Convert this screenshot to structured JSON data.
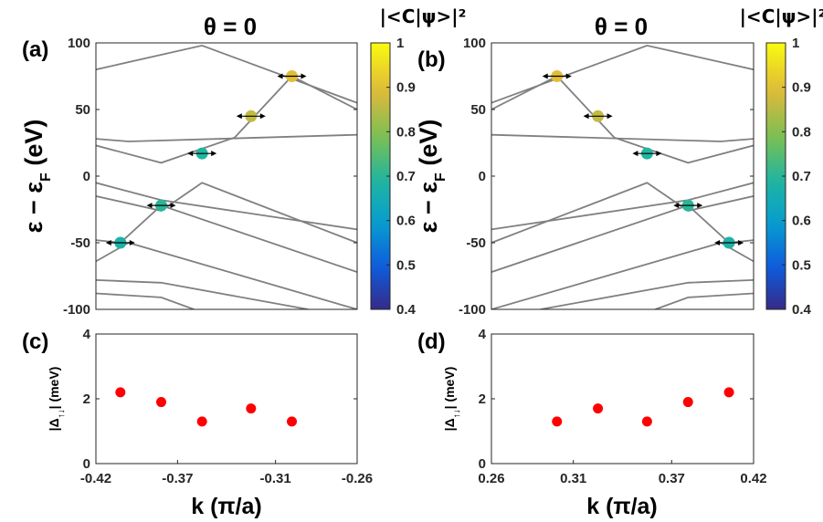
{
  "chart_data": [
    {
      "id": "a",
      "type": "line",
      "panel_label": "(a)",
      "title": "θ = 0",
      "ylabel": "ε − ε_F (eV)",
      "ylabel_main": "ε − ε",
      "ylabel_sub": "F",
      "ylabel_tail": " (eV)",
      "xlim": [
        -0.42,
        -0.26
      ],
      "ylim": [
        -100,
        100
      ],
      "yticks": [
        100,
        50,
        0,
        -50,
        -100
      ],
      "ytick_labels": [
        "100",
        "50",
        "0",
        "-50",
        "-100"
      ],
      "line_color": "#808080",
      "bands": [
        [
          [
            -0.42,
            80
          ],
          [
            -0.355,
            98
          ],
          [
            -0.26,
            55
          ]
        ],
        [
          [
            -0.42,
            28
          ],
          [
            -0.4,
            26
          ],
          [
            -0.26,
            31
          ]
        ],
        [
          [
            -0.42,
            23
          ],
          [
            -0.38,
            10
          ],
          [
            -0.335,
            29
          ],
          [
            -0.3,
            75
          ],
          [
            -0.26,
            50
          ]
        ],
        [
          [
            -0.42,
            -5
          ],
          [
            -0.38,
            -18
          ],
          [
            -0.26,
            -40
          ]
        ],
        [
          [
            -0.42,
            -15
          ],
          [
            -0.38,
            -26
          ],
          [
            -0.355,
            -5
          ],
          [
            -0.26,
            -50
          ]
        ],
        [
          [
            -0.42,
            -48
          ],
          [
            -0.405,
            -50
          ],
          [
            -0.38,
            -22
          ],
          [
            -0.26,
            -72
          ]
        ],
        [
          [
            -0.42,
            -64
          ],
          [
            -0.4,
            -50
          ],
          [
            -0.26,
            -100
          ]
        ],
        [
          [
            -0.42,
            -78
          ],
          [
            -0.38,
            -80
          ],
          [
            -0.29,
            -100
          ]
        ],
        [
          [
            -0.42,
            -88
          ],
          [
            -0.38,
            -91
          ],
          [
            -0.36,
            -100
          ]
        ]
      ],
      "points": [
        {
          "k": -0.405,
          "e": -50,
          "w": 0.68
        },
        {
          "k": -0.38,
          "e": -22,
          "w": 0.7
        },
        {
          "k": -0.355,
          "e": 17,
          "w": 0.69
        },
        {
          "k": -0.325,
          "e": 45,
          "w": 0.86
        },
        {
          "k": -0.3,
          "e": 75,
          "w": 0.9
        }
      ]
    },
    {
      "id": "b",
      "type": "line",
      "panel_label": "(b)",
      "title": "θ = 0",
      "ylabel": "ε − ε_F (eV)",
      "ylabel_main": "ε − ε",
      "ylabel_sub": "F",
      "ylabel_tail": " (eV)",
      "xlim": [
        0.26,
        0.42
      ],
      "ylim": [
        -100,
        100
      ],
      "yticks": [
        100,
        50,
        0,
        -50,
        -100
      ],
      "ytick_labels": [
        "100",
        "50",
        "0",
        "-50",
        "-100"
      ],
      "line_color": "#808080",
      "bands": [
        [
          [
            0.26,
            50
          ],
          [
            0.3,
            75
          ],
          [
            0.335,
            29
          ],
          [
            0.38,
            10
          ],
          [
            0.42,
            23
          ]
        ],
        [
          [
            0.26,
            55
          ],
          [
            0.355,
            98
          ],
          [
            0.42,
            80
          ]
        ],
        [
          [
            0.26,
            31
          ],
          [
            0.4,
            26
          ],
          [
            0.42,
            28
          ]
        ],
        [
          [
            0.26,
            -40
          ],
          [
            0.38,
            -18
          ],
          [
            0.42,
            -5
          ]
        ],
        [
          [
            0.26,
            -50
          ],
          [
            0.355,
            -5
          ],
          [
            0.38,
            -26
          ],
          [
            0.42,
            -15
          ]
        ],
        [
          [
            0.26,
            -72
          ],
          [
            0.38,
            -22
          ],
          [
            0.405,
            -50
          ],
          [
            0.42,
            -48
          ]
        ],
        [
          [
            0.26,
            -100
          ],
          [
            0.4,
            -50
          ],
          [
            0.42,
            -64
          ]
        ],
        [
          [
            0.29,
            -100
          ],
          [
            0.38,
            -80
          ],
          [
            0.42,
            -78
          ]
        ],
        [
          [
            0.36,
            -100
          ],
          [
            0.38,
            -91
          ],
          [
            0.42,
            -88
          ]
        ]
      ],
      "points": [
        {
          "k": 0.3,
          "e": 75,
          "w": 0.9
        },
        {
          "k": 0.325,
          "e": 45,
          "w": 0.86
        },
        {
          "k": 0.355,
          "e": 17,
          "w": 0.69
        },
        {
          "k": 0.38,
          "e": -22,
          "w": 0.7
        },
        {
          "k": 0.405,
          "e": -50,
          "w": 0.68
        }
      ]
    },
    {
      "id": "c",
      "type": "scatter",
      "panel_label": "(c)",
      "ylabel": "|Δ↑↓| (meV)",
      "ylabel_main": "|Δ",
      "ylabel_sub": "↑↓",
      "ylabel_tail": "| (meV)",
      "xlabel": "k (π/a)",
      "xlim": [
        -0.42,
        -0.26
      ],
      "ylim": [
        0,
        4
      ],
      "xticks": [
        -0.42,
        -0.37,
        -0.31,
        -0.26
      ],
      "xtick_labels": [
        "-0.42",
        "-0.37",
        "-0.31",
        "-0.26"
      ],
      "yticks": [
        0,
        2,
        4
      ],
      "ytick_labels": [
        "0",
        "2",
        "4"
      ],
      "color": "#ff0000",
      "x": [
        -0.405,
        -0.38,
        -0.355,
        -0.325,
        -0.3
      ],
      "y": [
        2.2,
        1.9,
        1.3,
        1.7,
        1.3
      ]
    },
    {
      "id": "d",
      "type": "scatter",
      "panel_label": "(d)",
      "ylabel": "|Δ↑↓| (meV)",
      "ylabel_main": "|Δ",
      "ylabel_sub": "↑↓",
      "ylabel_tail": "| (meV)",
      "xlabel": "k (π/a)",
      "xlim": [
        0.26,
        0.42
      ],
      "ylim": [
        0,
        4
      ],
      "xticks": [
        0.26,
        0.31,
        0.37,
        0.42
      ],
      "xtick_labels": [
        "0.26",
        "0.31",
        "0.37",
        "0.42"
      ],
      "yticks": [
        0,
        2,
        4
      ],
      "ytick_labels": [
        "0",
        "2",
        "4"
      ],
      "color": "#ff0000",
      "x": [
        0.3,
        0.325,
        0.355,
        0.38,
        0.405
      ],
      "y": [
        1.3,
        1.7,
        1.3,
        1.9,
        2.2
      ]
    }
  ],
  "colorbar": {
    "title": "|<C|ψ>|²",
    "range": [
      0.4,
      1.0
    ],
    "ticks": [
      1,
      0.9,
      0.8,
      0.7,
      0.6,
      0.5,
      0.4
    ],
    "tick_labels": [
      "1",
      "0.9",
      "0.8",
      "0.7",
      "0.6",
      "0.5",
      "0.4"
    ],
    "colormap": "parula"
  }
}
